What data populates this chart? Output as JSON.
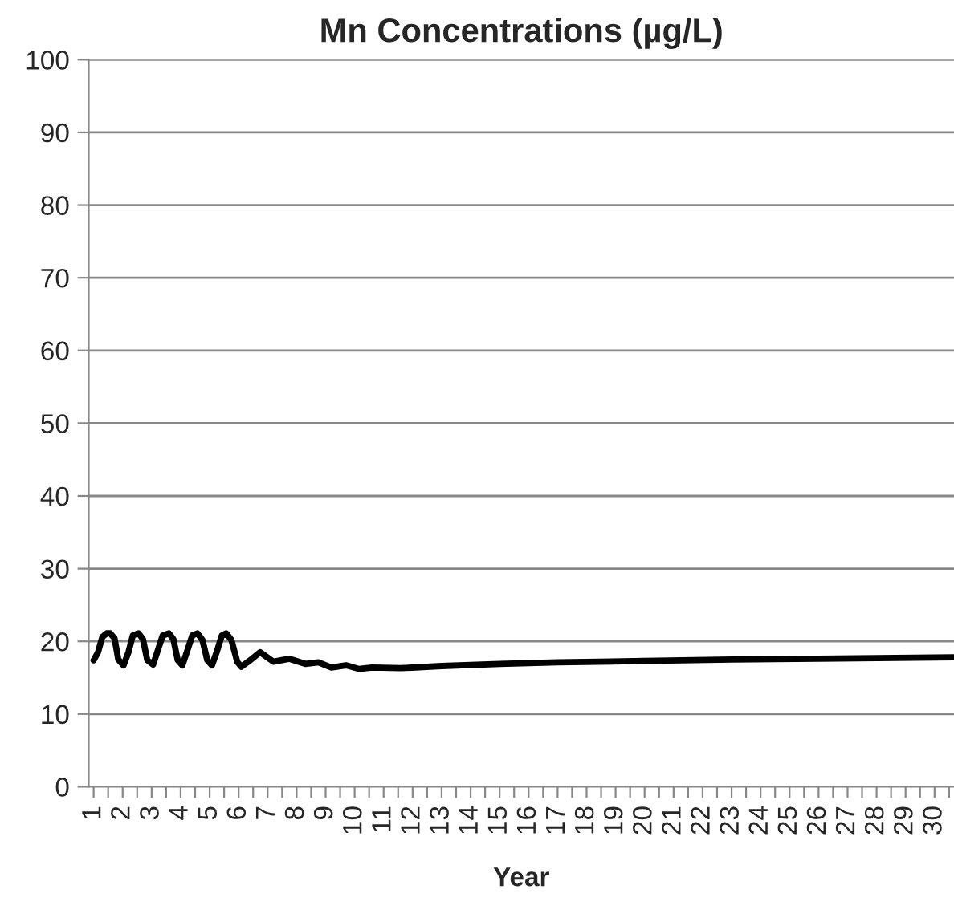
{
  "chart_data": {
    "type": "line",
    "title": "Mn Concentrations (µg/L)",
    "xlabel": "Year",
    "series": [
      {
        "color": "#000000",
        "x": [
          1.0,
          1.15,
          1.3,
          1.45,
          1.57,
          1.72,
          1.85,
          2.03,
          2.2,
          2.35,
          2.55,
          2.7,
          2.85,
          3.05,
          3.2,
          3.38,
          3.6,
          3.75,
          3.9,
          4.06,
          4.22,
          4.4,
          4.58,
          4.75,
          4.92,
          5.08,
          5.25,
          5.42,
          5.57,
          5.75,
          5.95,
          6.09,
          6.4,
          6.74,
          7.2,
          7.75,
          8.3,
          8.75,
          9.2,
          9.7,
          10.15,
          10.6,
          11.6,
          13,
          15,
          17,
          20,
          23,
          26,
          28,
          30.67
        ],
        "values": [
          17.4,
          18.5,
          20.6,
          21.1,
          21.1,
          20.4,
          17.5,
          16.7,
          18.5,
          20.8,
          21.1,
          20.3,
          17.4,
          16.8,
          18.6,
          20.8,
          21.1,
          20.3,
          17.4,
          16.7,
          18.6,
          20.8,
          21.1,
          20.2,
          17.4,
          16.7,
          18.6,
          20.8,
          21.1,
          20.2,
          17.2,
          16.5,
          17.4,
          18.5,
          17.2,
          17.6,
          16.9,
          17.1,
          16.4,
          16.7,
          16.2,
          16.4,
          16.3,
          16.6,
          16.9,
          17.1,
          17.3,
          17.5,
          17.6,
          17.7,
          17.8
        ]
      }
    ],
    "xlim": [
      0.83,
      30.67
    ],
    "xticks": [
      1,
      {
        "value": 1.5,
        "label": null
      },
      2,
      {
        "value": 2.5,
        "label": null
      },
      3,
      {
        "value": 3.5,
        "label": null
      },
      4,
      {
        "value": 4.5,
        "label": null
      },
      5,
      {
        "value": 5.5,
        "label": null
      },
      6,
      {
        "value": 6.5,
        "label": null
      },
      7,
      {
        "value": 7.5,
        "label": null
      },
      8,
      {
        "value": 8.5,
        "label": null
      },
      9,
      {
        "value": 9.5,
        "label": null
      },
      10,
      {
        "value": 10.5,
        "label": null
      },
      11,
      {
        "value": 11.5,
        "label": null
      },
      12,
      {
        "value": 12.5,
        "label": null
      },
      13,
      {
        "value": 13.5,
        "label": null
      },
      14,
      {
        "value": 14.5,
        "label": null
      },
      15,
      {
        "value": 15.5,
        "label": null
      },
      16,
      {
        "value": 16.5,
        "label": null
      },
      17,
      {
        "value": 17.5,
        "label": null
      },
      18,
      {
        "value": 18.5,
        "label": null
      },
      19,
      {
        "value": 19.5,
        "label": null
      },
      20,
      {
        "value": 20.5,
        "label": null
      },
      21,
      {
        "value": 21.5,
        "label": null
      },
      22,
      {
        "value": 22.5,
        "label": null
      },
      23,
      {
        "value": 23.5,
        "label": null
      },
      24,
      {
        "value": 24.5,
        "label": null
      },
      25,
      {
        "value": 25.5,
        "label": null
      },
      26,
      {
        "value": 26.5,
        "label": null
      },
      27,
      {
        "value": 27.5,
        "label": null
      },
      28,
      {
        "value": 28.5,
        "label": null
      },
      29,
      {
        "value": 29.5,
        "label": null
      },
      30,
      {
        "value": 30.5,
        "label": null
      }
    ],
    "ylim": [
      0,
      100
    ],
    "yticks": [
      0,
      10,
      20,
      30,
      40,
      50,
      60,
      70,
      80,
      90,
      100
    ],
    "grid": "y",
    "legend": false,
    "marker": "none",
    "line_style": "solid"
  }
}
